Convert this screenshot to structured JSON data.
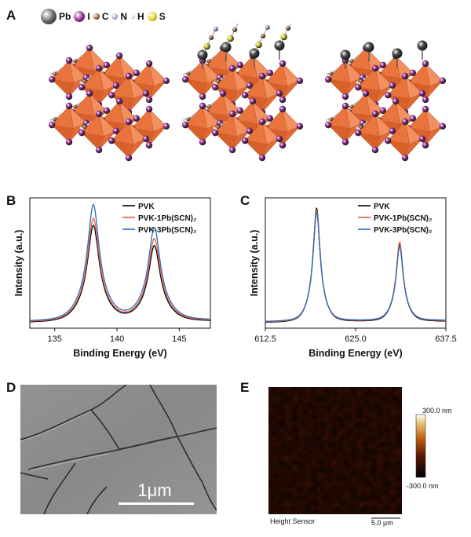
{
  "panels": {
    "a": "A",
    "b": "B",
    "c": "C",
    "d": "D",
    "e": "E"
  },
  "legend_atoms": [
    {
      "label": "Pb",
      "color": "#5a5a5a",
      "size": 20
    },
    {
      "label": "I",
      "color": "#8a2a8f",
      "size": 14
    },
    {
      "label": "C",
      "color": "#8b5a2b",
      "size": 8
    },
    {
      "label": "N",
      "color": "#a7b4d6",
      "size": 8
    },
    {
      "label": "H",
      "color": "#e8e8e8",
      "size": 6
    },
    {
      "label": "S",
      "color": "#e2d52a",
      "size": 12
    }
  ],
  "chart_data": [
    {
      "type": "line",
      "panel": "B",
      "xlabel": "Binding Energy (eV)",
      "ylabel": "Intensity (a.u.)",
      "xlim": [
        133,
        147.5
      ],
      "xticks": [
        "135",
        "140",
        "145"
      ],
      "xtick_values": [
        135,
        140,
        145
      ],
      "legend_position": "top-right",
      "series": [
        {
          "name": "PVK",
          "color": "#000000",
          "peaks": [
            {
              "x": 138.1,
              "h": 0.74,
              "w": 0.55
            },
            {
              "x": 143.0,
              "h": 0.58,
              "w": 0.55
            }
          ]
        },
        {
          "name": "PVK-1Pb(SCN)₂",
          "color": "#e8603c",
          "peaks": [
            {
              "x": 138.1,
              "h": 0.79,
              "w": 0.55
            },
            {
              "x": 143.0,
              "h": 0.63,
              "w": 0.55
            }
          ]
        },
        {
          "name": "PVK-3Pb(SCN)₂",
          "color": "#2b6cc0",
          "peaks": [
            {
              "x": 138.1,
              "h": 0.89,
              "w": 0.55
            },
            {
              "x": 143.0,
              "h": 0.71,
              "w": 0.55
            }
          ]
        }
      ]
    },
    {
      "type": "line",
      "panel": "C",
      "xlabel": "Binding Energy (eV)",
      "ylabel": "Intensity (a.u.)",
      "xlim": [
        612.5,
        637.5
      ],
      "xticks": [
        "612.5",
        "625.0",
        "637.5"
      ],
      "xtick_values": [
        612.5,
        625.0,
        637.5
      ],
      "legend_position": "top-right",
      "series": [
        {
          "name": "PVK",
          "color": "#000000",
          "peaks": [
            {
              "x": 619.6,
              "h": 0.88,
              "w": 0.55
            },
            {
              "x": 631.1,
              "h": 0.6,
              "w": 0.55
            }
          ]
        },
        {
          "name": "PVK-1Pb(SCN)₂",
          "color": "#e8603c",
          "peaks": [
            {
              "x": 619.6,
              "h": 0.86,
              "w": 0.55
            },
            {
              "x": 631.1,
              "h": 0.61,
              "w": 0.55
            }
          ]
        },
        {
          "name": "PVK-3Pb(SCN)₂",
          "color": "#2b6cc0",
          "peaks": [
            {
              "x": 619.6,
              "h": 0.84,
              "w": 0.55
            },
            {
              "x": 631.1,
              "h": 0.57,
              "w": 0.55
            }
          ]
        }
      ]
    }
  ],
  "sem": {
    "scale_label": "1μm"
  },
  "afm": {
    "cbar_max": "300.0 nm",
    "cbar_min": "-300.0 nm",
    "caption": "Height Sensor",
    "scale_label": "5.0 μm"
  }
}
